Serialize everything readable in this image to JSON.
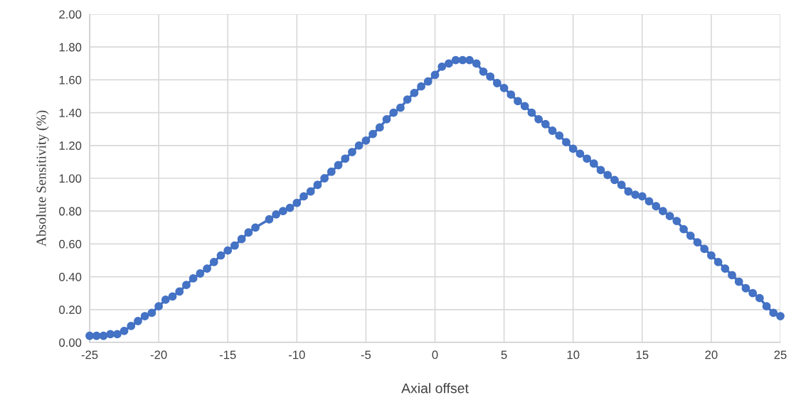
{
  "chart_data": {
    "type": "line",
    "xlabel": "Axial offset",
    "ylabel": "Absolute Sensitivity (%)",
    "series": [
      {
        "color": "#4472c4",
        "x": [
          -25,
          -24.5,
          -24,
          -23.5,
          -23,
          -22.5,
          -22,
          -21.5,
          -21,
          -20.5,
          -20,
          -19.5,
          -19,
          -18.5,
          -18,
          -17.5,
          -17,
          -16.5,
          -16,
          -15.5,
          -15,
          -14.5,
          -14,
          -13.5,
          -13,
          -12,
          -11.5,
          -11,
          -10.5,
          -10,
          -9.5,
          -9,
          -8.5,
          -8,
          -7.5,
          -7,
          -6.5,
          -6,
          -5.5,
          -5,
          -4.5,
          -4,
          -3.5,
          -3,
          -2.5,
          -2,
          -1.5,
          -1,
          -0.5,
          0,
          0.5,
          1,
          1.5,
          2,
          2.5,
          3,
          3.5,
          4,
          4.5,
          5,
          5.5,
          6,
          6.5,
          7,
          7.5,
          8,
          8.5,
          9,
          9.5,
          10,
          10.5,
          11,
          11.5,
          12,
          12.5,
          13,
          13.5,
          14,
          14.5,
          15,
          15.5,
          16,
          16.5,
          17,
          17.5,
          18,
          18.5,
          19,
          19.5,
          20,
          20.5,
          21,
          21.5,
          22,
          22.5,
          23,
          23.5,
          24,
          24.5,
          25
        ],
        "values": [
          0.04,
          0.04,
          0.04,
          0.05,
          0.05,
          0.07,
          0.1,
          0.13,
          0.16,
          0.18,
          0.22,
          0.26,
          0.28,
          0.31,
          0.35,
          0.39,
          0.42,
          0.45,
          0.49,
          0.53,
          0.56,
          0.59,
          0.63,
          0.67,
          0.7,
          0.75,
          0.78,
          0.8,
          0.82,
          0.85,
          0.89,
          0.92,
          0.96,
          1.0,
          1.04,
          1.08,
          1.12,
          1.16,
          1.2,
          1.23,
          1.27,
          1.31,
          1.36,
          1.4,
          1.43,
          1.48,
          1.52,
          1.56,
          1.59,
          1.63,
          1.68,
          1.7,
          1.72,
          1.72,
          1.72,
          1.7,
          1.65,
          1.62,
          1.58,
          1.55,
          1.51,
          1.47,
          1.44,
          1.4,
          1.36,
          1.33,
          1.29,
          1.26,
          1.22,
          1.18,
          1.15,
          1.12,
          1.09,
          1.05,
          1.02,
          0.99,
          0.96,
          0.92,
          0.9,
          0.89,
          0.86,
          0.83,
          0.8,
          0.77,
          0.74,
          0.69,
          0.65,
          0.61,
          0.57,
          0.53,
          0.49,
          0.45,
          0.41,
          0.37,
          0.33,
          0.3,
          0.27,
          0.22,
          0.18,
          0.16
        ]
      }
    ],
    "xlim": [
      -25,
      25
    ],
    "xticks": [
      -25,
      -20,
      -15,
      -10,
      -5,
      0,
      5,
      10,
      15,
      20,
      25
    ],
    "ylim": [
      0,
      2
    ],
    "yticks": [
      {
        "value": 0,
        "label": "0.00"
      },
      {
        "value": 0.2,
        "label": "0.20"
      },
      {
        "value": 0.4,
        "label": "0.40"
      },
      {
        "value": 0.6,
        "label": "0.60"
      },
      {
        "value": 0.8,
        "label": "0.80"
      },
      {
        "value": 1.0,
        "label": "1.00"
      },
      {
        "value": 1.2,
        "label": "1.20"
      },
      {
        "value": 1.4,
        "label": "1.40"
      },
      {
        "value": 1.6,
        "label": "1.60"
      },
      {
        "value": 1.8,
        "label": "1.80"
      },
      {
        "value": 2.0,
        "label": "2.00"
      }
    ],
    "grid": true,
    "marker": "circle",
    "line_style": "solid"
  }
}
